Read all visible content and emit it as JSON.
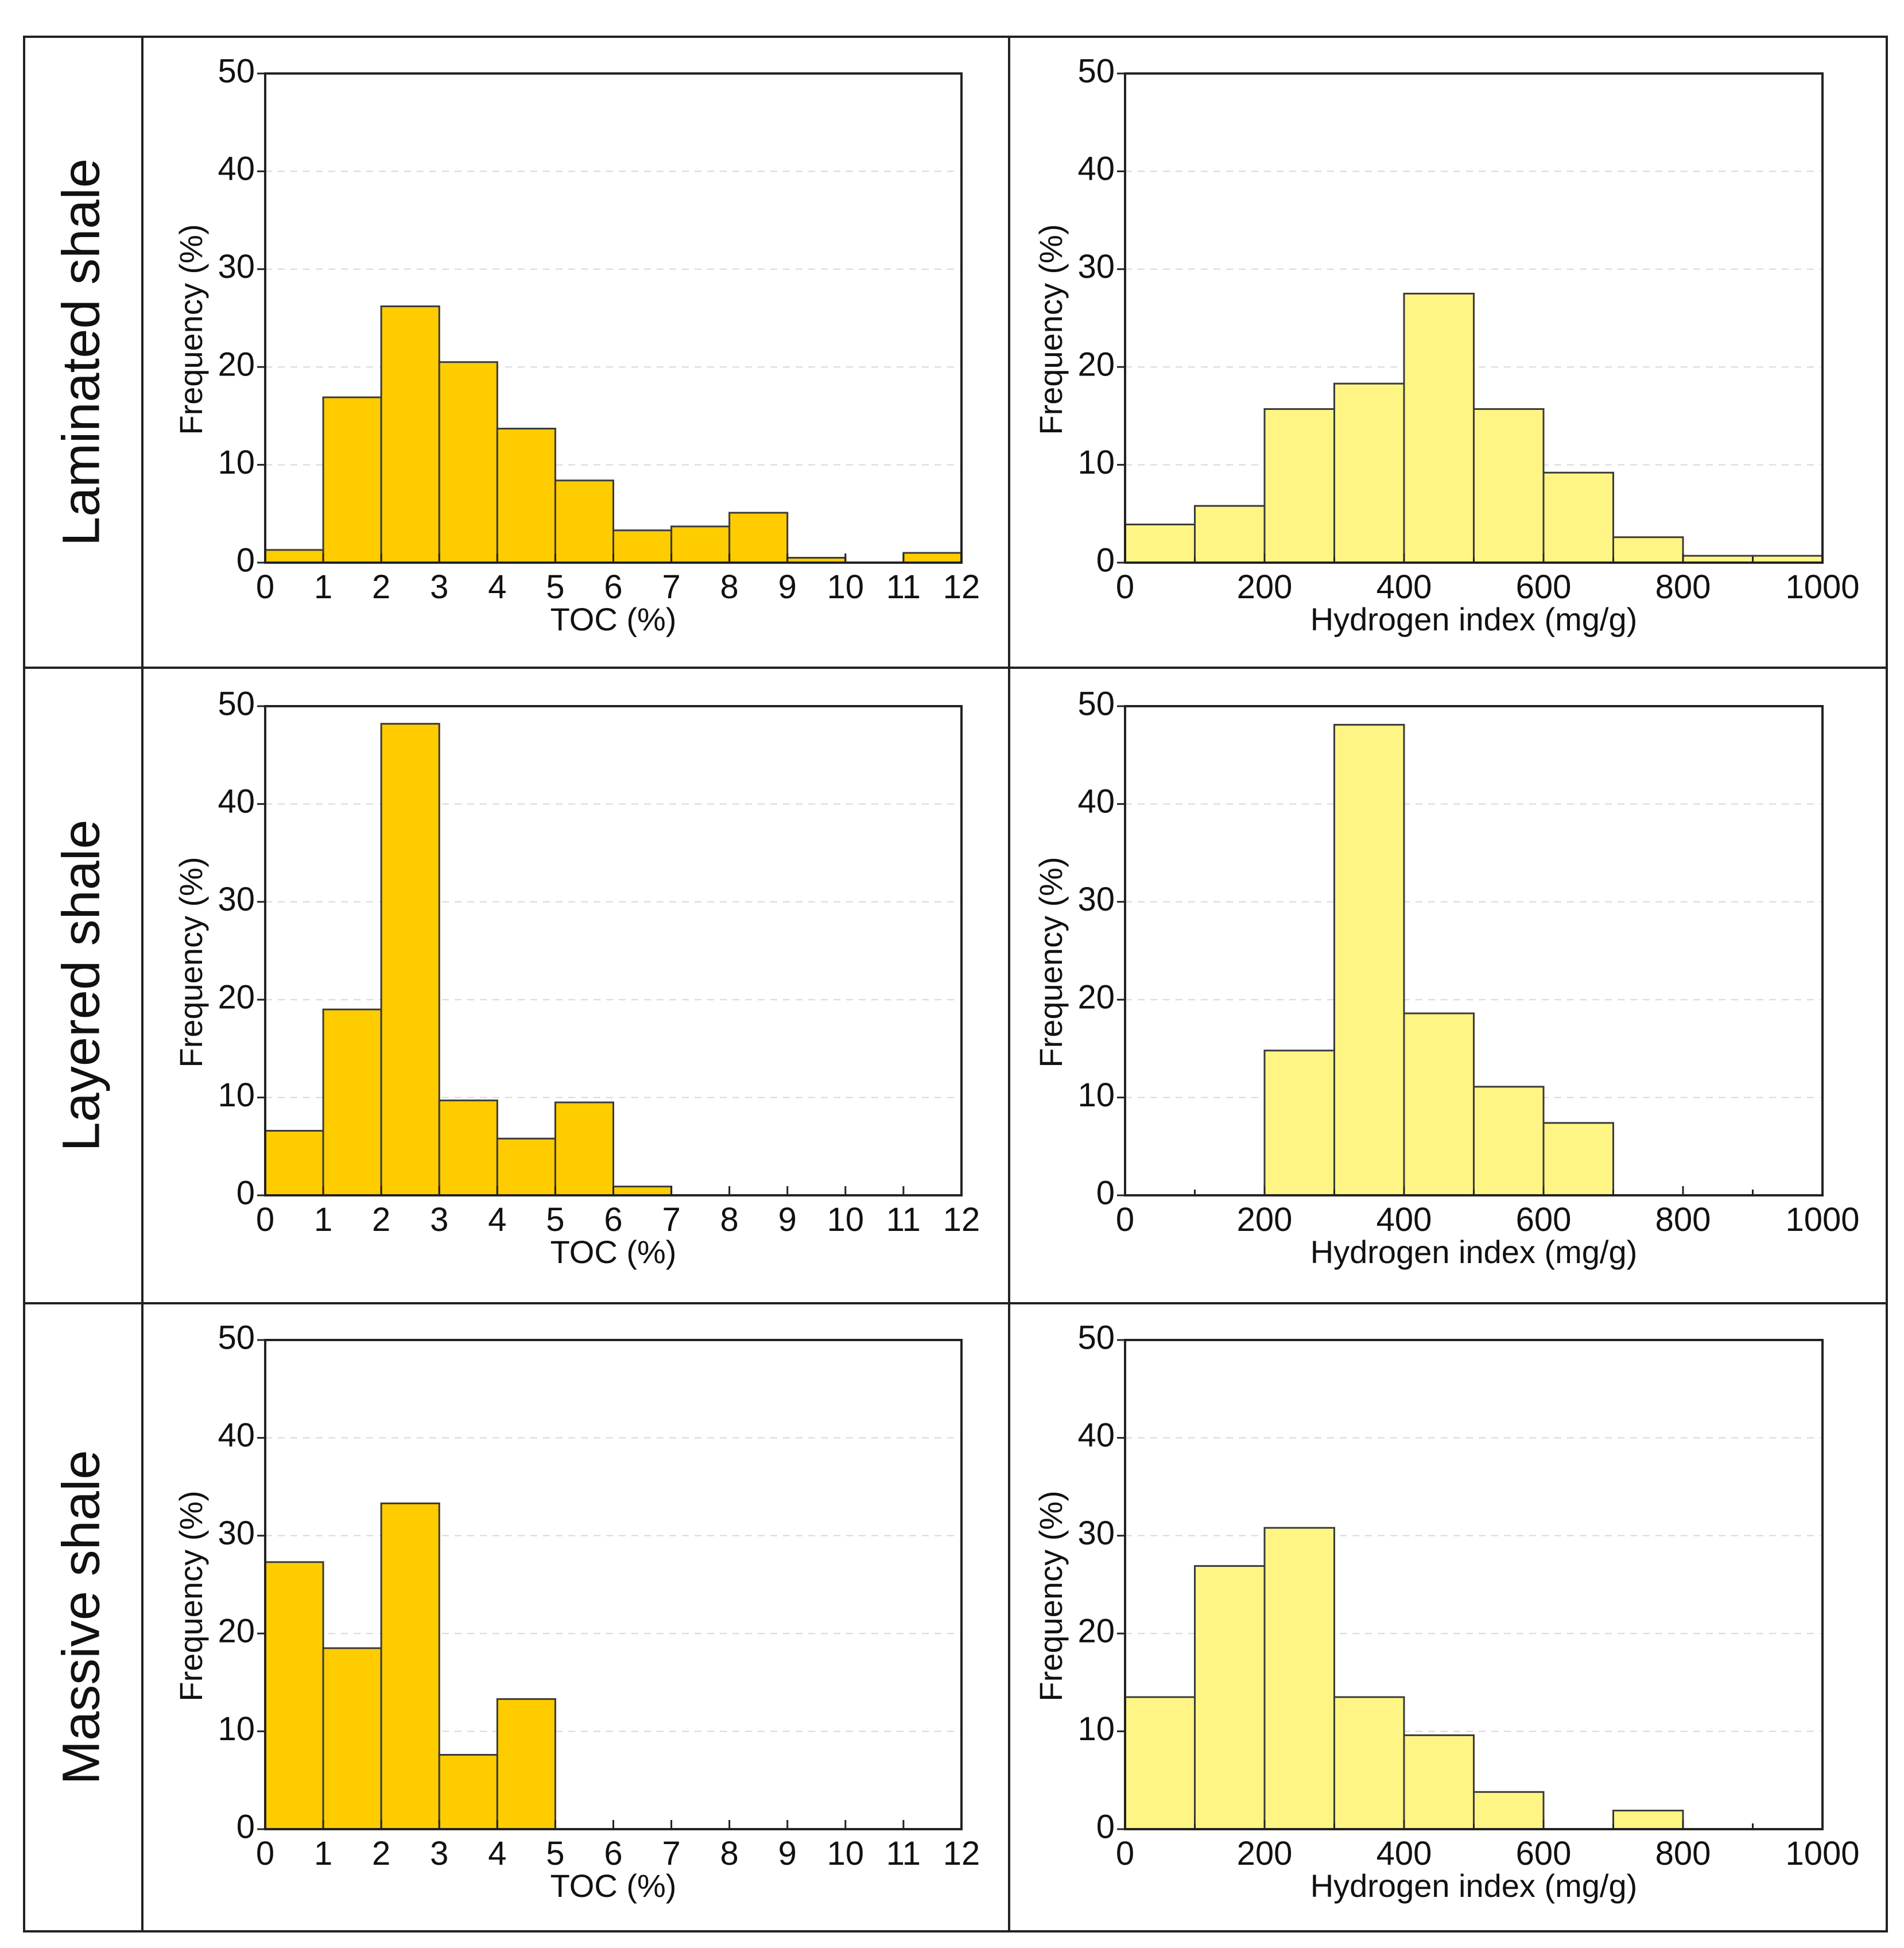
{
  "colors": {
    "toc_bar": "#FFCC00",
    "hi_bar": "#FFF585",
    "edge": "#3a3a3a"
  },
  "rows": [
    {
      "label": "Laminated shale"
    },
    {
      "label": "Layered shale"
    },
    {
      "label": "Massive shale"
    }
  ],
  "chart_data": [
    {
      "id": "laminated-toc",
      "type": "bar",
      "row": 0,
      "col": 0,
      "xlabel": "TOC (%)",
      "ylabel": "Frequency (%)",
      "xlim": [
        0,
        12
      ],
      "ylim": [
        0,
        50
      ],
      "xticks": [
        0,
        1,
        2,
        3,
        4,
        5,
        6,
        7,
        8,
        9,
        10,
        11,
        12
      ],
      "xtick_labels": [
        "0",
        "1",
        "2",
        "3",
        "4",
        "5",
        "6",
        "7",
        "8",
        "9",
        "10",
        "11",
        "12"
      ],
      "yticks": [
        0,
        10,
        20,
        30,
        40,
        50
      ],
      "ytick_labels": [
        "0",
        "10",
        "20",
        "30",
        "40",
        "50"
      ],
      "bin_width": 1,
      "bins": [
        0,
        1,
        2,
        3,
        4,
        5,
        6,
        7,
        8,
        9,
        10,
        11
      ],
      "values": [
        1.3,
        16.9,
        26.2,
        20.5,
        13.7,
        8.4,
        3.3,
        3.7,
        5.1,
        0.5,
        0,
        1.0
      ]
    },
    {
      "id": "laminated-hi",
      "type": "bar",
      "row": 0,
      "col": 1,
      "xlabel": "Hydrogen index (mg/g)",
      "ylabel": "Frequency (%)",
      "xlim": [
        0,
        1000
      ],
      "ylim": [
        0,
        50
      ],
      "xticks": [
        0,
        200,
        400,
        600,
        800,
        1000
      ],
      "xtick_labels": [
        "0",
        "200",
        "400",
        "600",
        "800",
        "1000"
      ],
      "minor_xticks": [
        100,
        300,
        500,
        700,
        900
      ],
      "yticks": [
        0,
        10,
        20,
        30,
        40,
        50
      ],
      "ytick_labels": [
        "0",
        "10",
        "20",
        "30",
        "40",
        "50"
      ],
      "bin_width": 100,
      "bins": [
        0,
        100,
        200,
        300,
        400,
        500,
        600,
        700,
        800,
        900
      ],
      "values": [
        3.9,
        5.8,
        15.7,
        18.3,
        27.5,
        15.7,
        9.2,
        2.6,
        0.7,
        0.7
      ]
    },
    {
      "id": "layered-toc",
      "type": "bar",
      "row": 1,
      "col": 0,
      "xlabel": "TOC (%)",
      "ylabel": "Frequency (%)",
      "xlim": [
        0,
        12
      ],
      "ylim": [
        0,
        50
      ],
      "xticks": [
        0,
        1,
        2,
        3,
        4,
        5,
        6,
        7,
        8,
        9,
        10,
        11,
        12
      ],
      "xtick_labels": [
        "0",
        "1",
        "2",
        "3",
        "4",
        "5",
        "6",
        "7",
        "8",
        "9",
        "10",
        "11",
        "12"
      ],
      "yticks": [
        0,
        10,
        20,
        30,
        40,
        50
      ],
      "ytick_labels": [
        "0",
        "10",
        "20",
        "30",
        "40",
        "50"
      ],
      "bin_width": 1,
      "bins": [
        0,
        1,
        2,
        3,
        4,
        5,
        6
      ],
      "values": [
        6.6,
        19.0,
        48.2,
        9.7,
        5.8,
        9.5,
        0.9
      ]
    },
    {
      "id": "layered-hi",
      "type": "bar",
      "row": 1,
      "col": 1,
      "xlabel": "Hydrogen index (mg/g)",
      "ylabel": "Frequency (%)",
      "xlim": [
        0,
        1000
      ],
      "ylim": [
        0,
        50
      ],
      "xticks": [
        0,
        200,
        400,
        600,
        800,
        1000
      ],
      "xtick_labels": [
        "0",
        "200",
        "400",
        "600",
        "800",
        "1000"
      ],
      "minor_xticks": [
        100,
        300,
        500,
        700,
        900
      ],
      "yticks": [
        0,
        10,
        20,
        30,
        40,
        50
      ],
      "ytick_labels": [
        "0",
        "10",
        "20",
        "30",
        "40",
        "50"
      ],
      "bin_width": 100,
      "bins": [
        200,
        300,
        400,
        500,
        600
      ],
      "values": [
        14.8,
        48.1,
        18.6,
        11.1,
        7.4
      ]
    },
    {
      "id": "massive-toc",
      "type": "bar",
      "row": 2,
      "col": 0,
      "xlabel": "TOC (%)",
      "ylabel": "Frequency (%)",
      "xlim": [
        0,
        12
      ],
      "ylim": [
        0,
        50
      ],
      "xticks": [
        0,
        1,
        2,
        3,
        4,
        5,
        6,
        7,
        8,
        9,
        10,
        11,
        12
      ],
      "xtick_labels": [
        "0",
        "1",
        "2",
        "3",
        "4",
        "5",
        "6",
        "7",
        "8",
        "9",
        "10",
        "11",
        "12"
      ],
      "yticks": [
        0,
        10,
        20,
        30,
        40,
        50
      ],
      "ytick_labels": [
        "0",
        "10",
        "20",
        "30",
        "40",
        "50"
      ],
      "bin_width": 1,
      "bins": [
        0,
        1,
        2,
        3,
        4
      ],
      "values": [
        27.3,
        18.5,
        33.3,
        7.6,
        13.3
      ]
    },
    {
      "id": "massive-hi",
      "type": "bar",
      "row": 2,
      "col": 1,
      "xlabel": "Hydrogen index (mg/g)",
      "ylabel": "Frequency (%)",
      "xlim": [
        0,
        1000
      ],
      "ylim": [
        0,
        50
      ],
      "xticks": [
        0,
        200,
        400,
        600,
        800,
        1000
      ],
      "xtick_labels": [
        "0",
        "200",
        "400",
        "600",
        "800",
        "1000"
      ],
      "minor_xticks": [
        100,
        300,
        500,
        700,
        900
      ],
      "yticks": [
        0,
        10,
        20,
        30,
        40,
        50
      ],
      "ytick_labels": [
        "0",
        "10",
        "20",
        "30",
        "40",
        "50"
      ],
      "bin_width": 100,
      "bins": [
        0,
        100,
        200,
        300,
        400,
        500,
        700
      ],
      "values": [
        13.5,
        26.9,
        30.8,
        13.5,
        9.6,
        3.8,
        1.9
      ]
    }
  ]
}
